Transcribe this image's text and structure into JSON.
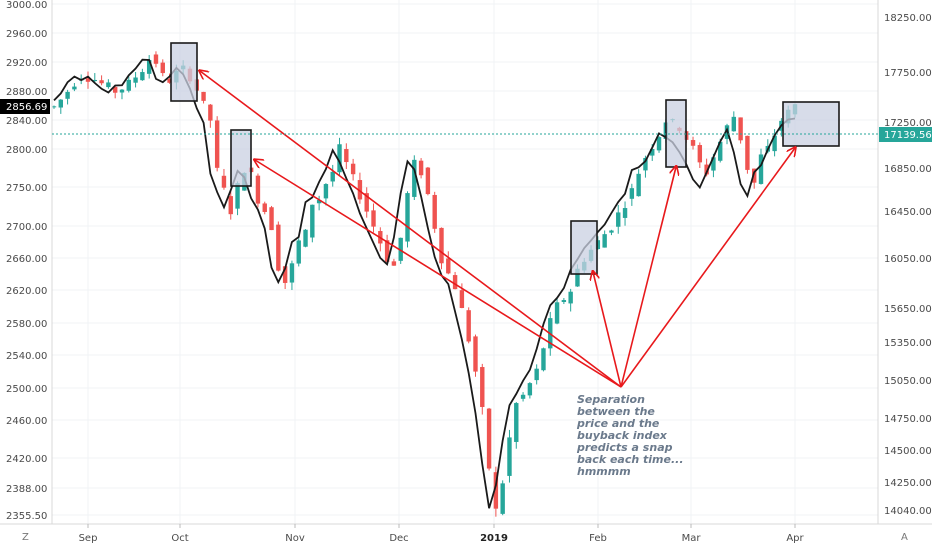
{
  "chart_data": {
    "type": "line",
    "left_axis_ticks": [
      "3000.00",
      "2960.00",
      "2920.00",
      "2880.00",
      "2840.00",
      "2800.00",
      "2750.00",
      "2700.00",
      "2660.00",
      "2620.00",
      "2580.00",
      "2540.00",
      "2500.00",
      "2460.00",
      "2420.00",
      "2388.00",
      "2355.50"
    ],
    "right_axis_ticks": [
      "18250.00",
      "17750.00",
      "17250.00",
      "16850.00",
      "16450.00",
      "16050.00",
      "15650.00",
      "15350.00",
      "15050.00",
      "14750.00",
      "14500.00",
      "14250.00",
      "14040.00"
    ],
    "x_tick_labels": [
      "Sep",
      "Oct",
      "Nov",
      "Dec",
      "2019",
      "Feb",
      "Mar",
      "Apr"
    ],
    "current_price_label": "2856.69",
    "current_index_label": "17139.56",
    "corner_left": "Z",
    "corner_right": "A",
    "annotation_lines": [
      "Separation",
      "between the",
      "price and the",
      "buyback index",
      "predicts a snap",
      "back each time...",
      "hmmmm"
    ],
    "series": [
      {
        "values": [
          2858,
          2868,
          2880,
          2892,
          2902,
          2899,
          2896,
          2890,
          2885,
          2880,
          2884,
          2890,
          2900,
          2910,
          2924,
          2920,
          2900,
          2895,
          2904,
          2910,
          2900,
          2882,
          2860,
          2840,
          2770,
          2745,
          2720,
          2750,
          2775,
          2765,
          2735,
          2720,
          2700,
          2650,
          2630,
          2650,
          2680,
          2690,
          2730,
          2735,
          2755,
          2770,
          2800,
          2780,
          2760,
          2740,
          2720,
          2700,
          2680,
          2660,
          2650,
          2685,
          2740,
          2780,
          2770,
          2740,
          2700,
          2660,
          2640,
          2625,
          2595,
          2560,
          2520,
          2470,
          2410,
          2360,
          2395,
          2440,
          2480,
          2490,
          2505,
          2520,
          2550,
          2580,
          2600,
          2610,
          2620,
          2645,
          2660,
          2670,
          2680,
          2690,
          2700,
          2715,
          2730,
          2745,
          2770,
          2790,
          2805,
          2820,
          2840,
          2835,
          2830,
          2815,
          2800,
          2780,
          2770,
          2790,
          2810,
          2830,
          2845,
          2815,
          2775,
          2755,
          2790,
          2800,
          2820,
          2840,
          2850,
          2860
        ],
        "color": "#1a1a1a"
      }
    ]
  },
  "colors": {
    "up": "#26a69a",
    "down": "#ef5350",
    "line": "#1a1a1a",
    "arrow": "#e8191c",
    "box_fill": "#c9d0e1",
    "box_stroke": "#1a1a1a",
    "hline": "#26a69a",
    "badge_price": "#000000",
    "badge_index": "#26a69a"
  }
}
